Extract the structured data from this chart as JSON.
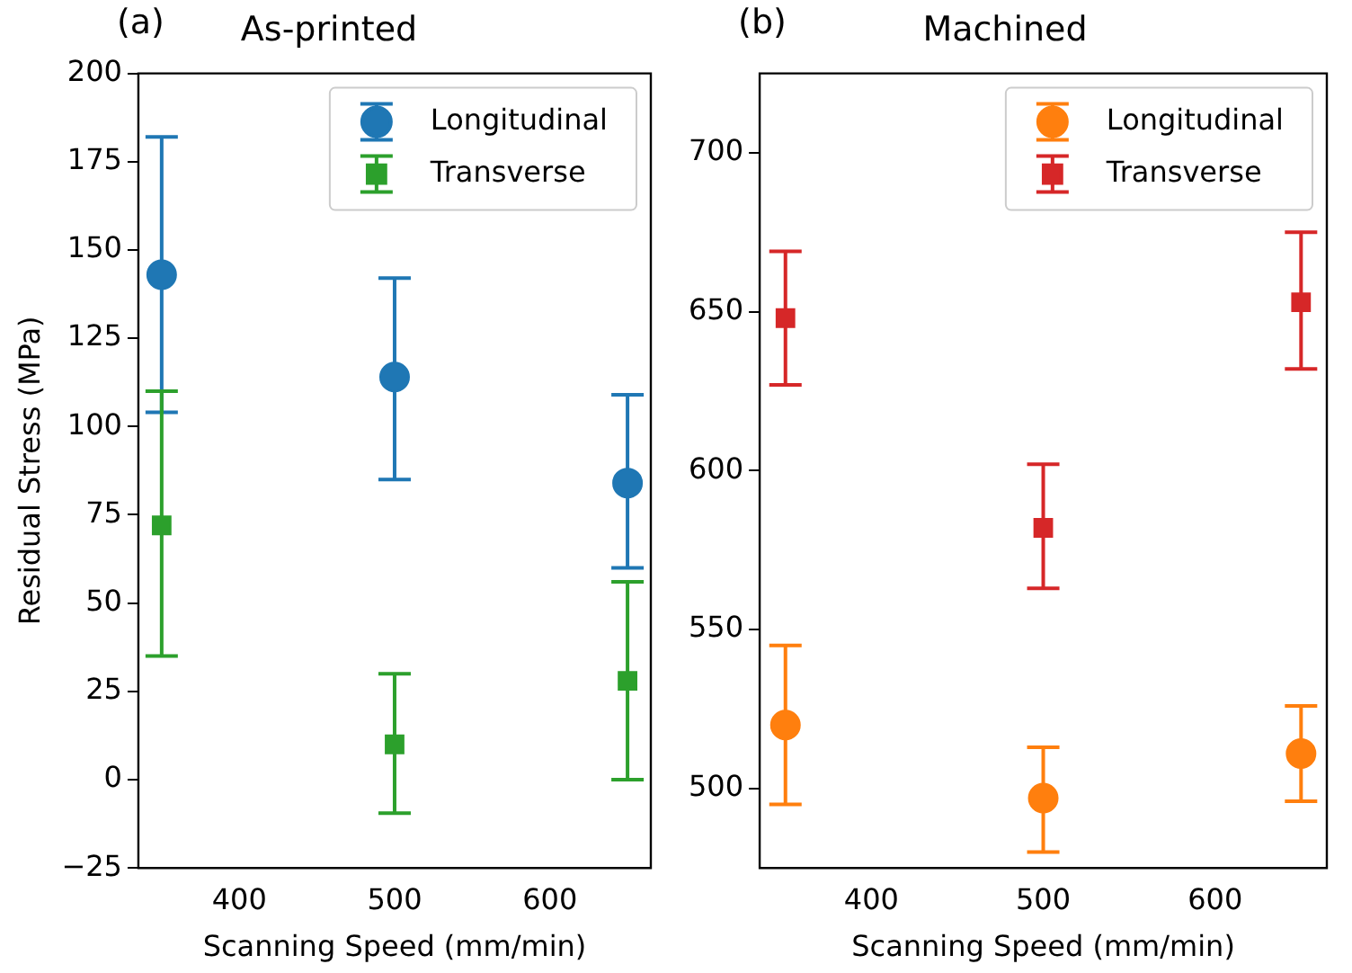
{
  "chart_data": [
    {
      "type": "scatter",
      "title": "As-printed",
      "annotations": [
        "(a)"
      ],
      "xlabel": "Scanning Speed (mm/min)",
      "ylabel": "Residual Stress (MPa)",
      "xlim": [
        335,
        665
      ],
      "xticks": [
        400,
        500,
        600
      ],
      "ylim": [
        -25,
        200
      ],
      "yticks": [
        {
          "value": -25,
          "label": "−25"
        },
        0,
        25,
        50,
        75,
        100,
        125,
        150,
        175,
        200
      ],
      "grid": false,
      "legend": "top right",
      "series": [
        {
          "name": "Longitudinal",
          "color": "#1f77b4",
          "marker": "circle",
          "x": [
            350,
            500,
            650
          ],
          "values": [
            143,
            114,
            84
          ],
          "errors": [
            [
              104,
              182
            ],
            [
              85,
              142
            ],
            [
              60,
              109
            ]
          ]
        },
        {
          "name": "Transverse",
          "color": "#2ca02c",
          "marker": "square",
          "x": [
            350,
            500,
            650
          ],
          "values": [
            72,
            10,
            28
          ],
          "errors": [
            [
              35,
              110
            ],
            [
              -9.5,
              30
            ],
            [
              0,
              56
            ]
          ]
        }
      ]
    },
    {
      "type": "scatter",
      "title": "Machined",
      "annotations": [
        "(b)"
      ],
      "xlabel": "Scanning Speed (mm/min)",
      "xlim": [
        335,
        665
      ],
      "xticks": [
        400,
        500,
        600
      ],
      "ylim": [
        475,
        725
      ],
      "yticks": [
        500,
        550,
        600,
        650,
        700
      ],
      "grid": false,
      "legend": "top right",
      "series": [
        {
          "name": "Longitudinal",
          "color": "#ff7f0e",
          "marker": "circle",
          "x": [
            350,
            500,
            650
          ],
          "values": [
            520,
            497,
            511
          ],
          "errors": [
            [
              495,
              545
            ],
            [
              480,
              513
            ],
            [
              496,
              526
            ]
          ]
        },
        {
          "name": "Transverse",
          "color": "#d62728",
          "marker": "square",
          "x": [
            350,
            500,
            650
          ],
          "values": [
            648,
            582,
            653
          ],
          "errors": [
            [
              627,
              669
            ],
            [
              563,
              602
            ],
            [
              632,
              675
            ]
          ]
        }
      ]
    }
  ]
}
